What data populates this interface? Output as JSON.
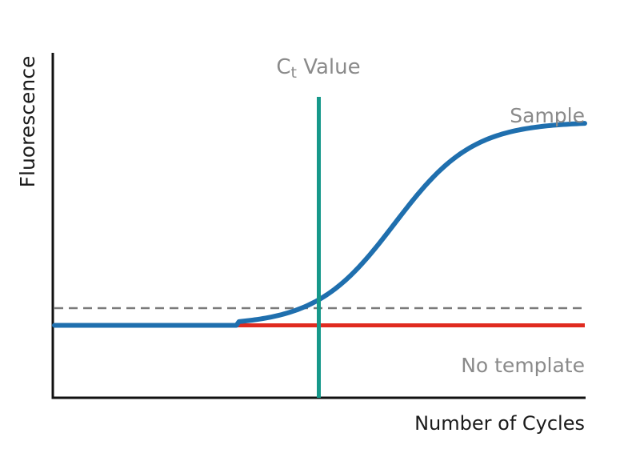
{
  "chart_data": {
    "type": "line",
    "title": "",
    "xlabel": "Number of Cycles",
    "ylabel": "Fluorescence",
    "xlim": [
      0,
      40
    ],
    "ylim": [
      0,
      100
    ],
    "grid": false,
    "threshold": {
      "value": 26,
      "style": "dashed",
      "color": "#7a7a7a"
    },
    "ct_marker": {
      "label_main": "C",
      "label_sub": "t",
      "label_tail": " Value",
      "x": 20,
      "color": "#16988a"
    },
    "series": [
      {
        "name": "Sample",
        "label": "Sample",
        "color": "#1f6fae",
        "baseline": 21,
        "plateau": 80,
        "midpoint": 25.7,
        "slope": 0.34,
        "x": [
          0,
          5,
          10,
          13,
          15,
          17,
          18,
          19,
          20,
          21,
          22,
          23,
          24,
          25,
          26,
          27,
          28,
          29,
          30,
          31,
          32,
          33,
          34,
          35,
          36,
          37,
          38,
          39,
          40
        ]
      },
      {
        "name": "No template",
        "label": "No template",
        "color": "#e02b20",
        "x": [
          0,
          40
        ],
        "values": [
          21,
          21
        ]
      }
    ]
  },
  "colors": {
    "axis": "#111111",
    "text_dark": "#1a1a1a",
    "text_grey": "#8a8a8a"
  }
}
